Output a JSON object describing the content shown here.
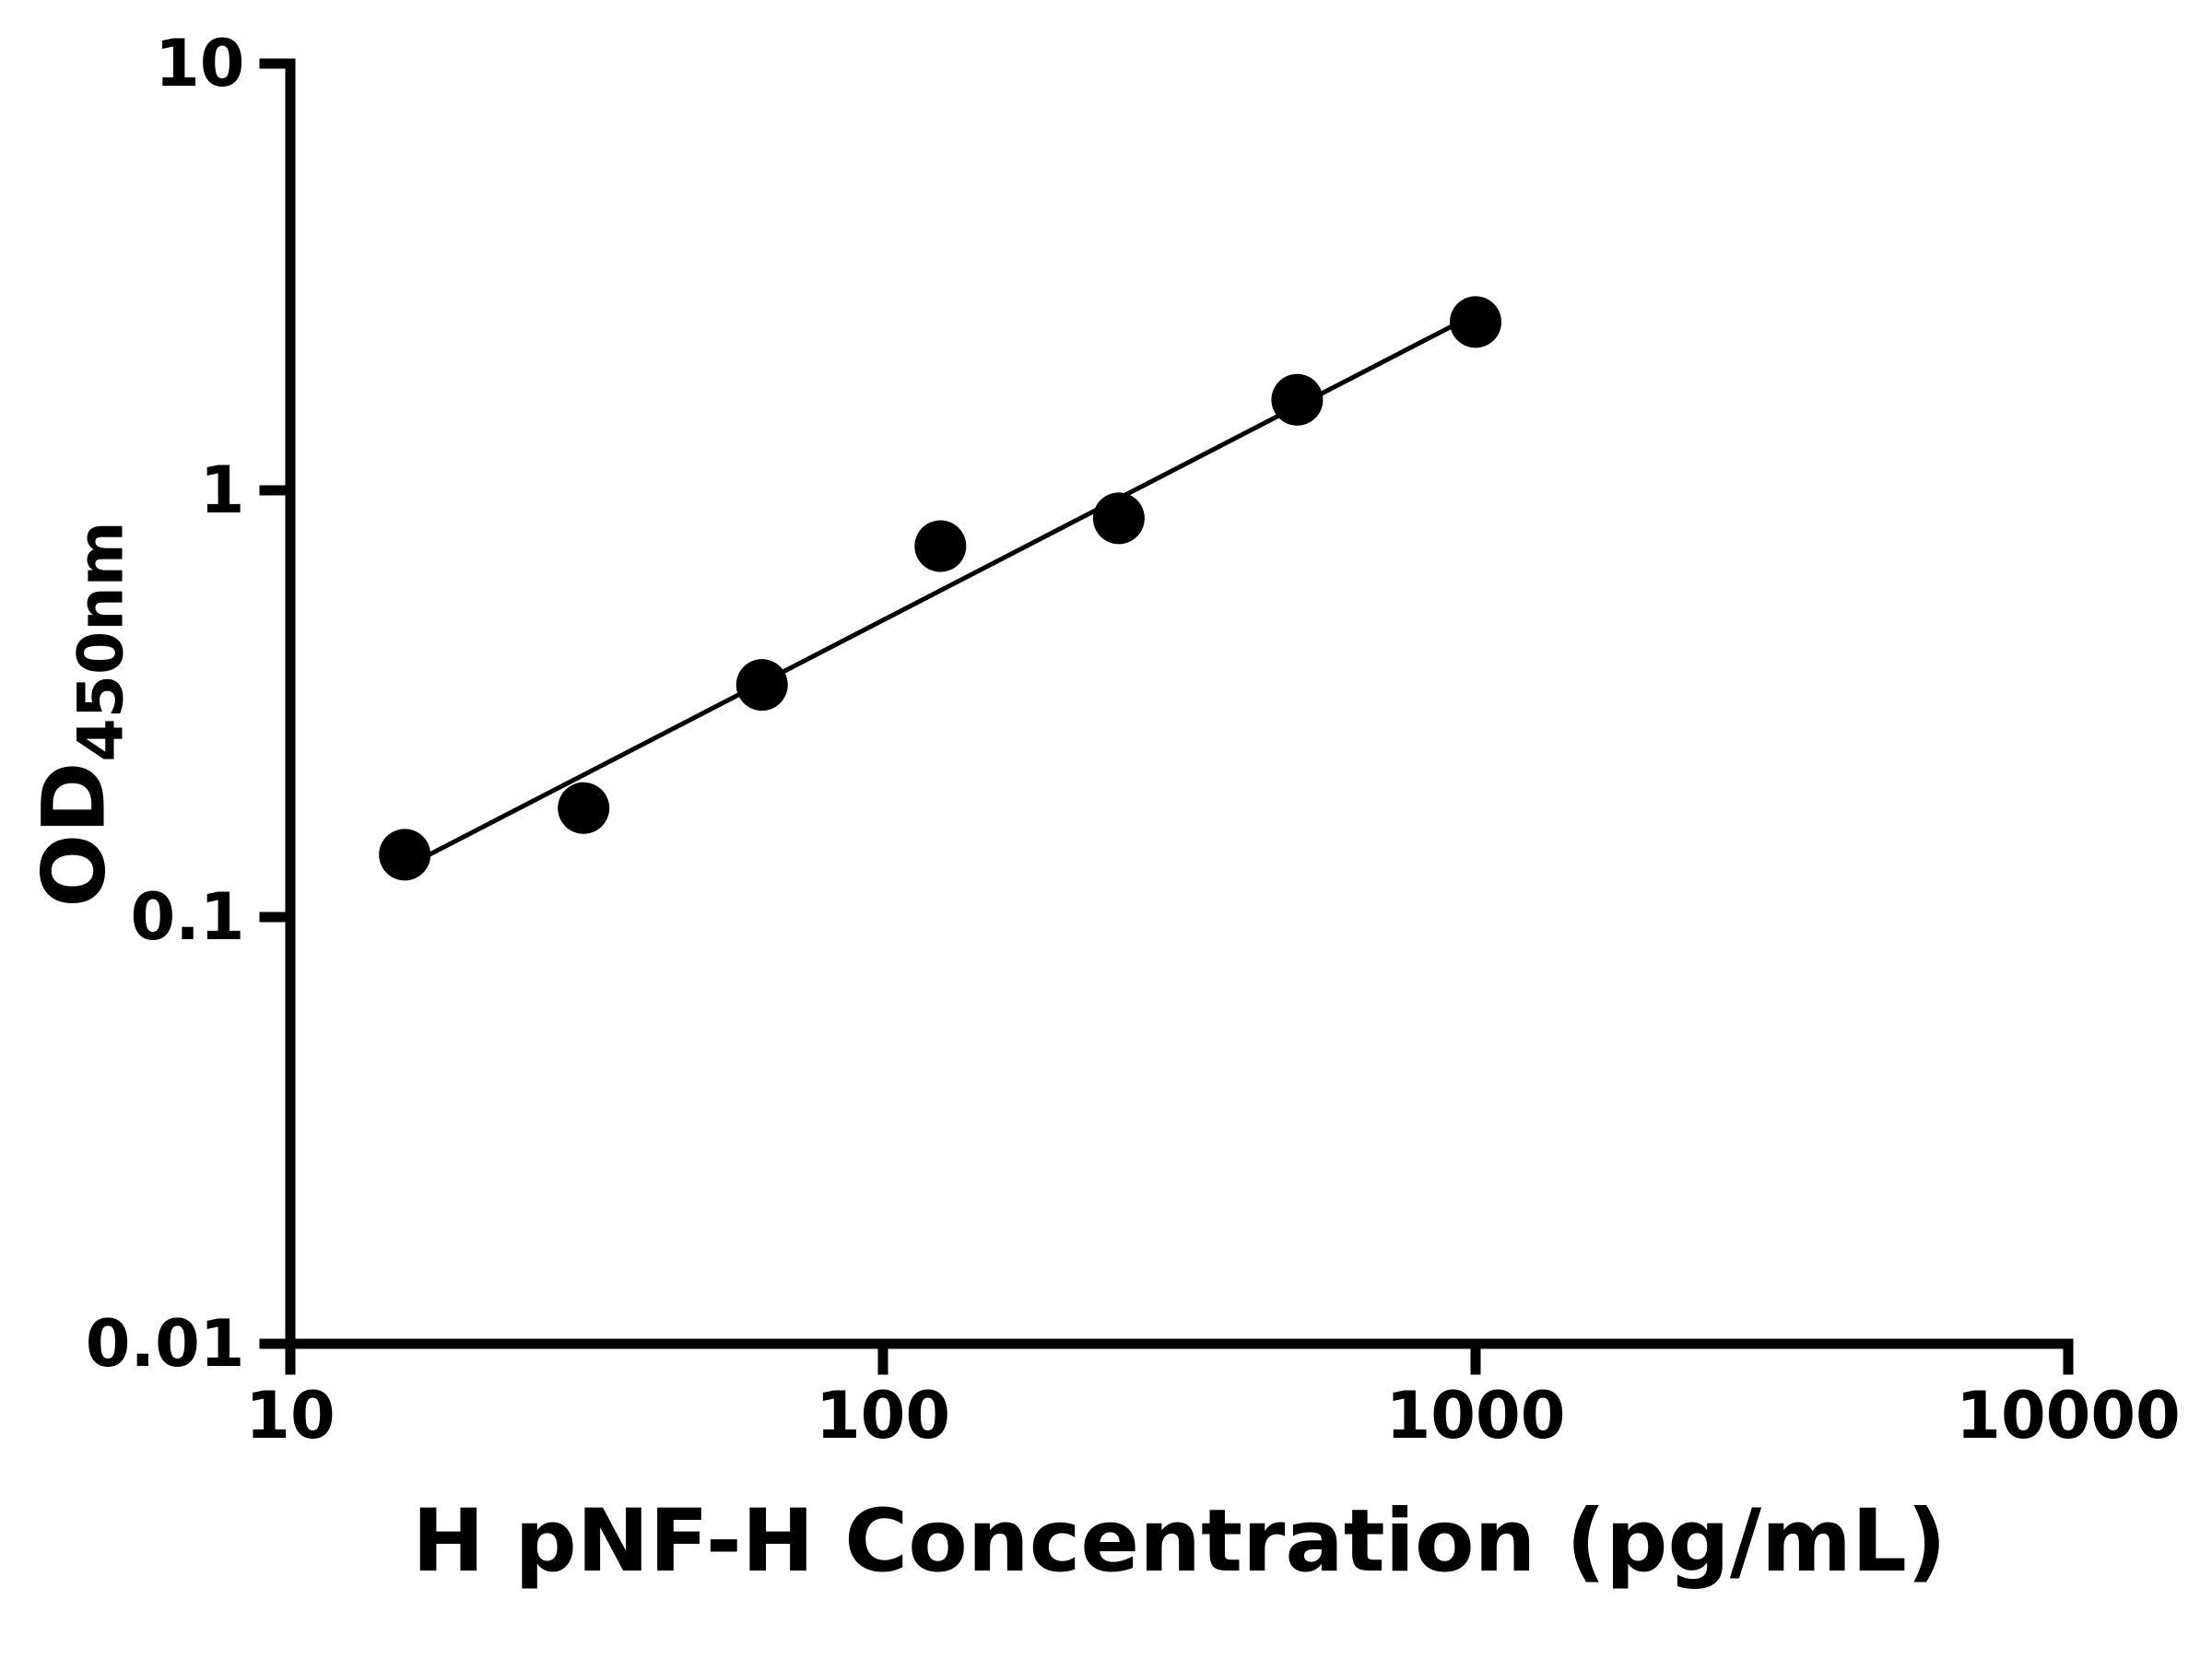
{
  "chart_data": {
    "type": "scatter",
    "title": "",
    "xlabel": "H pNF-H Concentration (pg/mL)",
    "ylabel_main": "OD",
    "ylabel_sub": "450nm",
    "x_scale": "log",
    "y_scale": "log",
    "xlim": [
      10,
      10000
    ],
    "ylim": [
      0.01,
      10
    ],
    "x_ticks": [
      10,
      100,
      1000,
      10000
    ],
    "x_tick_labels": [
      "10",
      "100",
      "1000",
      "10000"
    ],
    "y_ticks": [
      0.01,
      0.1,
      1,
      10
    ],
    "y_tick_labels": [
      "0.01",
      "0.1",
      "1",
      "10"
    ],
    "x": [
      15.6,
      31.25,
      62.5,
      125,
      250,
      500,
      1000
    ],
    "y": [
      0.14,
      0.18,
      0.35,
      0.74,
      0.86,
      1.63,
      2.48
    ],
    "trendline": true,
    "legend": "none",
    "grid": false,
    "marker_color": "#000000",
    "line_color": "#000000",
    "axis_color": "#000000",
    "background": "#ffffff"
  }
}
